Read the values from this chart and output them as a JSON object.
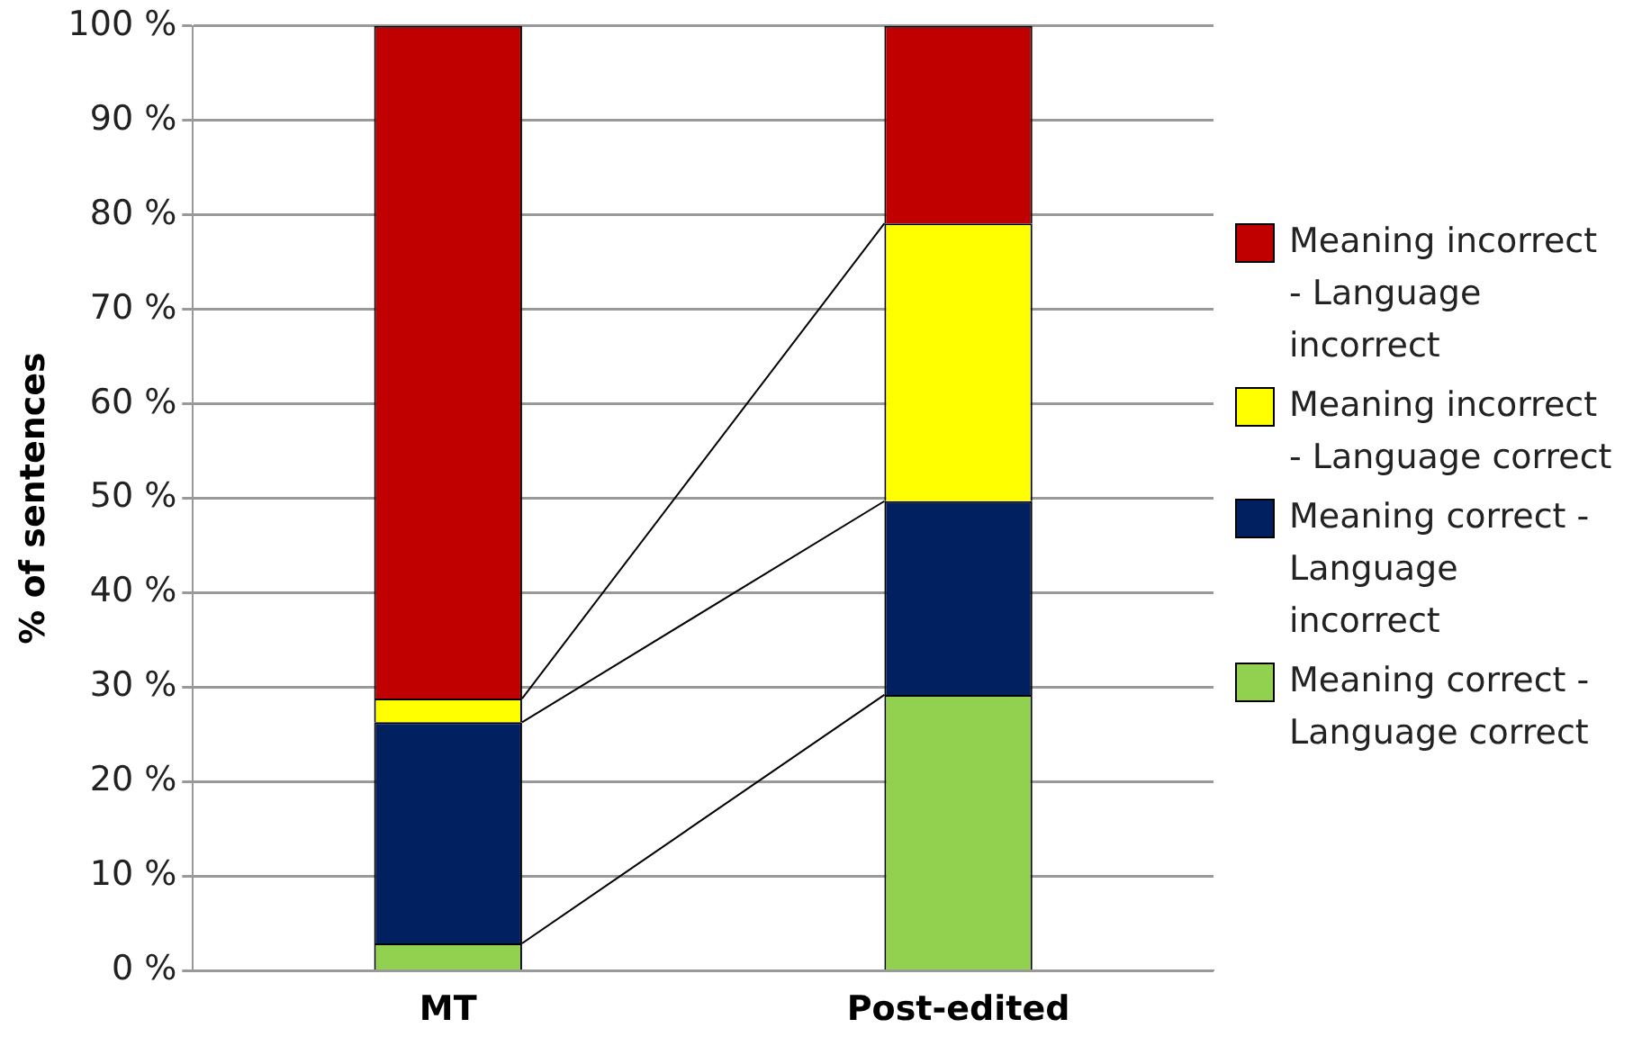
{
  "chart_data": {
    "type": "bar",
    "stacked": true,
    "ylabel": "% of sentences",
    "categories": [
      "MT",
      "Post-edited"
    ],
    "series": [
      {
        "name": "Meaning correct - Language correct",
        "color": "#92d050",
        "values": [
          2.9,
          29.2
        ]
      },
      {
        "name": "Meaning correct - Language incorrect",
        "color": "#002060",
        "values": [
          23.4,
          20.5
        ]
      },
      {
        "name": "Meaning incorrect - Language correct",
        "color": "#ffff00",
        "values": [
          2.5,
          29.4
        ]
      },
      {
        "name": "Meaning incorrect - Language incorrect",
        "color": "#c00000",
        "values": [
          71.2,
          20.9
        ]
      }
    ],
    "ylim": [
      0,
      100
    ],
    "yticks": [
      {
        "value": 0,
        "label": "0 %"
      },
      {
        "value": 10,
        "label": "10 %"
      },
      {
        "value": 20,
        "label": "20 %"
      },
      {
        "value": 30,
        "label": "30 %"
      },
      {
        "value": 40,
        "label": "40 %"
      },
      {
        "value": 50,
        "label": "50 %"
      },
      {
        "value": 60,
        "label": "60 %"
      },
      {
        "value": 70,
        "label": "70 %"
      },
      {
        "value": 80,
        "label": "80 %"
      },
      {
        "value": 90,
        "label": "90 %"
      },
      {
        "value": 100,
        "label": "100 %"
      }
    ],
    "grid": "y",
    "legend": "right"
  }
}
